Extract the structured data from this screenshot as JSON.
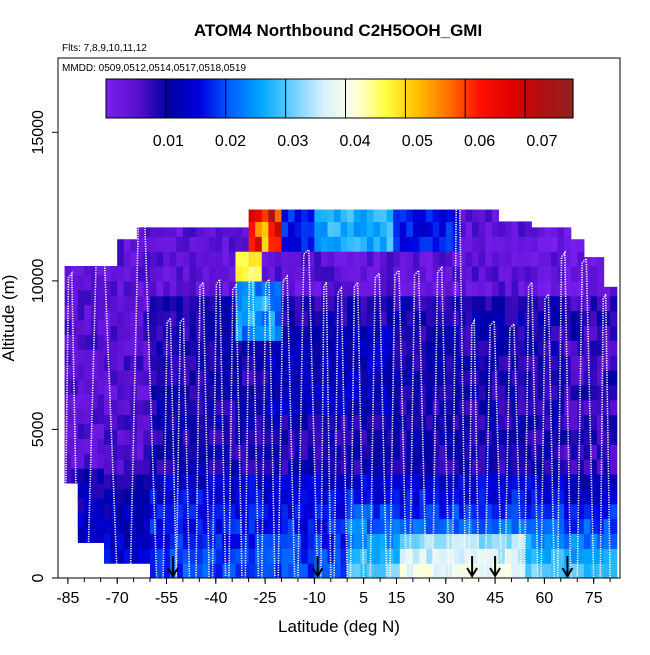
{
  "chart_data": {
    "type": "heatmap",
    "title": "ATOM4 Northbound C2H5OOH_GMI",
    "flights_label": "Flts: 7,8,9,10,11,12",
    "dates_label": "MMDD: 0509,0512,0514,0517,0518,0519",
    "xlabel": "Latitude (deg N)",
    "ylabel": "Altitude (m)",
    "xlim": [
      -88,
      83
    ],
    "ylim": [
      0,
      17500
    ],
    "x_ticks": [
      "-85",
      "-70",
      "-55",
      "-40",
      "-25",
      "-10",
      "5",
      "15",
      "30",
      "45",
      "60",
      "75"
    ],
    "y_ticks": [
      "0",
      "5000",
      "10000",
      "15000"
    ],
    "colorbar": {
      "ticks": [
        "0.01",
        "0.02",
        "0.03",
        "0.04",
        "0.05",
        "0.06",
        "0.07"
      ],
      "range": [
        0.0,
        0.075
      ],
      "colors": [
        "#7a1ff0",
        "#5a10d0",
        "#0000a0",
        "#0000e0",
        "#0060ff",
        "#00a8ff",
        "#6cd0ff",
        "#d8f0ff",
        "#ffffe0",
        "#ffff40",
        "#ffc000",
        "#ff7000",
        "#ff1000",
        "#e00000",
        "#b01010",
        "#902020"
      ]
    },
    "profile_arrows_lat": [
      -53,
      -9,
      38,
      45,
      67
    ],
    "profiles": [
      {
        "lat_range": [
          -86,
          -82
        ],
        "top": 10100
      },
      {
        "lat_range": [
          -79,
          -70
        ],
        "top": 11100
      },
      {
        "lat_range": [
          -66,
          -58
        ],
        "top": 11800
      },
      {
        "lat_range": [
          -56,
          -52
        ],
        "top": 8600
      },
      {
        "lat_range": [
          -52,
          -48
        ],
        "top": 8600
      },
      {
        "lat_range": [
          -46,
          -42
        ],
        "top": 9800
      },
      {
        "lat_range": [
          -41,
          -37
        ],
        "top": 9900
      },
      {
        "lat_range": [
          -36,
          -32
        ],
        "top": 9700
      },
      {
        "lat_range": [
          -31,
          -27
        ],
        "top": 10300
      },
      {
        "lat_range": [
          -26,
          -22
        ],
        "top": 9900
      },
      {
        "lat_range": [
          -21,
          -16
        ],
        "top": 10000
      },
      {
        "lat_range": [
          -15,
          -9
        ],
        "top": 10900
      },
      {
        "lat_range": [
          -8,
          -5
        ],
        "top": 9800
      },
      {
        "lat_range": [
          -4,
          0
        ],
        "top": 9600
      },
      {
        "lat_range": [
          1,
          5
        ],
        "top": 9800
      },
      {
        "lat_range": [
          7,
          12
        ],
        "top": 10100
      },
      {
        "lat_range": [
          13,
          18
        ],
        "top": 10200
      },
      {
        "lat_range": [
          19,
          24
        ],
        "top": 10200
      },
      {
        "lat_range": [
          26,
          31
        ],
        "top": 10300
      },
      {
        "lat_range": [
          32,
          36
        ],
        "top": 12800
      },
      {
        "lat_range": [
          37,
          40
        ],
        "top": 8500
      },
      {
        "lat_range": [
          42,
          47
        ],
        "top": 8500
      },
      {
        "lat_range": [
          48,
          53
        ],
        "top": 8400
      },
      {
        "lat_range": [
          54,
          58
        ],
        "top": 9800
      },
      {
        "lat_range": [
          59,
          63
        ],
        "top": 9400
      },
      {
        "lat_range": [
          64,
          68
        ],
        "top": 10800
      },
      {
        "lat_range": [
          70,
          75
        ],
        "top": 10600
      },
      {
        "lat_range": [
          77,
          80
        ],
        "top": 9400
      }
    ]
  }
}
